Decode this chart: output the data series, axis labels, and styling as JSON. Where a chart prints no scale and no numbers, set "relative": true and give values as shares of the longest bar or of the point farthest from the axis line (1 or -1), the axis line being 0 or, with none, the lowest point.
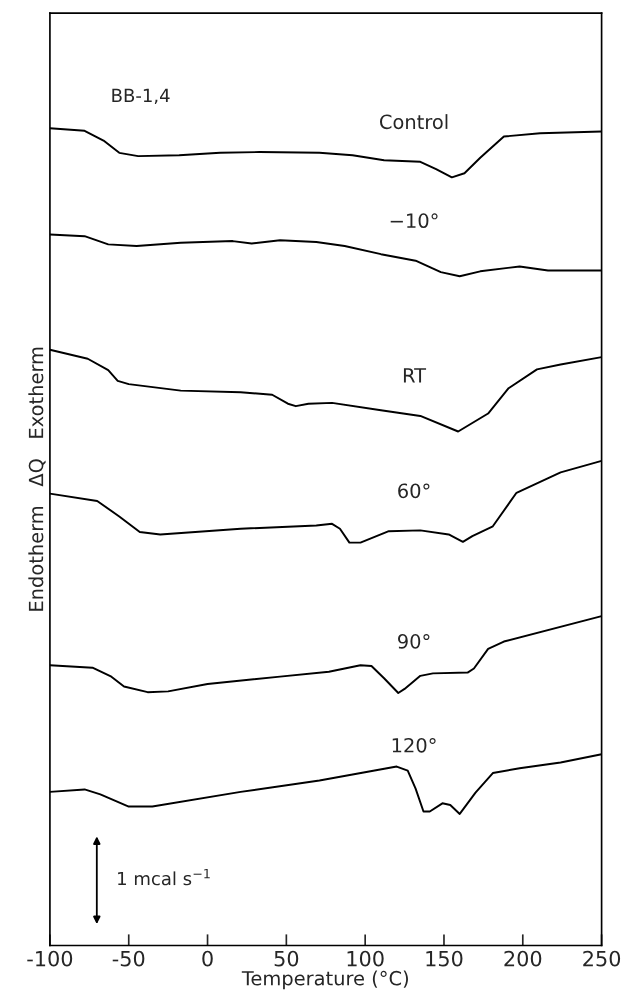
{
  "chart_data": {
    "type": "line",
    "relative": true,
    "xlabel": "Temperature (°C)",
    "ylabel": "Endotherm   ΔQ   Exotherm",
    "xlim": [
      -100,
      250
    ],
    "xticks": [
      -100,
      -50,
      0,
      50,
      100,
      150,
      200,
      250
    ],
    "tick_labels": "x",
    "grid": false,
    "legend": false,
    "annotations": [
      "BB-1,4",
      "1 mcal s$^{−1}$"
    ],
    "series": [
      {
        "name": "Control",
        "color": "#000000",
        "x": [
          -100,
          -78,
          -66,
          -56,
          -44,
          -18,
          8,
          33,
          71,
          92,
          112,
          135,
          145,
          155,
          163,
          173,
          188,
          211,
          250
        ],
        "values": [
          1.0,
          0.997,
          0.985,
          0.97,
          0.966,
          0.967,
          0.97,
          0.971,
          0.97,
          0.967,
          0.961,
          0.959,
          0.95,
          0.94,
          0.945,
          0.964,
          0.99,
          0.994,
          0.996
        ]
      },
      {
        "name": "−10°",
        "color": "#000000",
        "x": [
          -100,
          -78,
          -63,
          -45,
          -17,
          16,
          28,
          46,
          69,
          87,
          110,
          132,
          148,
          160,
          173,
          198,
          216,
          250
        ],
        "values": [
          0.87,
          0.868,
          0.858,
          0.856,
          0.86,
          0.862,
          0.859,
          0.863,
          0.861,
          0.856,
          0.846,
          0.838,
          0.824,
          0.819,
          0.825,
          0.831,
          0.826,
          0.826
        ]
      },
      {
        "name": "RT",
        "color": "#000000",
        "x": [
          -100,
          -76,
          -63,
          -57,
          -50,
          -17,
          21,
          41,
          51,
          56,
          64,
          79,
          110,
          135,
          159,
          178,
          191,
          209,
          224,
          250
        ],
        "values": [
          0.729,
          0.718,
          0.704,
          0.691,
          0.687,
          0.679,
          0.677,
          0.674,
          0.663,
          0.66,
          0.663,
          0.664,
          0.655,
          0.648,
          0.629,
          0.651,
          0.682,
          0.705,
          0.711,
          0.72
        ]
      },
      {
        "name": "60°",
        "color": "#000000",
        "x": [
          -100,
          -70,
          -56,
          -43,
          -30,
          21,
          69,
          79,
          84,
          90,
          97,
          115,
          135,
          153,
          162,
          168,
          181,
          196,
          224,
          250
        ],
        "values": [
          0.553,
          0.544,
          0.525,
          0.506,
          0.503,
          0.51,
          0.514,
          0.516,
          0.51,
          0.493,
          0.493,
          0.507,
          0.508,
          0.503,
          0.494,
          0.501,
          0.513,
          0.554,
          0.579,
          0.593
        ]
      },
      {
        "name": "90°",
        "color": "#000000",
        "x": [
          -100,
          -73,
          -61,
          -53,
          -38,
          -25,
          0,
          46,
          77,
          97,
          104,
          112,
          121,
          125,
          135,
          143,
          165,
          169,
          178,
          188,
          250
        ],
        "values": [
          0.343,
          0.34,
          0.329,
          0.317,
          0.31,
          0.311,
          0.32,
          0.329,
          0.335,
          0.343,
          0.342,
          0.327,
          0.309,
          0.314,
          0.33,
          0.333,
          0.334,
          0.339,
          0.363,
          0.372,
          0.403
        ]
      },
      {
        "name": "120°",
        "color": "#000000",
        "x": [
          -100,
          -78,
          -68,
          -50,
          -35,
          21,
          71,
          120,
          127,
          132,
          137,
          141,
          149,
          154,
          160,
          170,
          181,
          198,
          224,
          250
        ],
        "values": [
          0.188,
          0.191,
          0.185,
          0.17,
          0.17,
          0.188,
          0.202,
          0.219,
          0.214,
          0.192,
          0.164,
          0.164,
          0.174,
          0.172,
          0.161,
          0.187,
          0.211,
          0.217,
          0.224,
          0.234
        ]
      }
    ]
  }
}
